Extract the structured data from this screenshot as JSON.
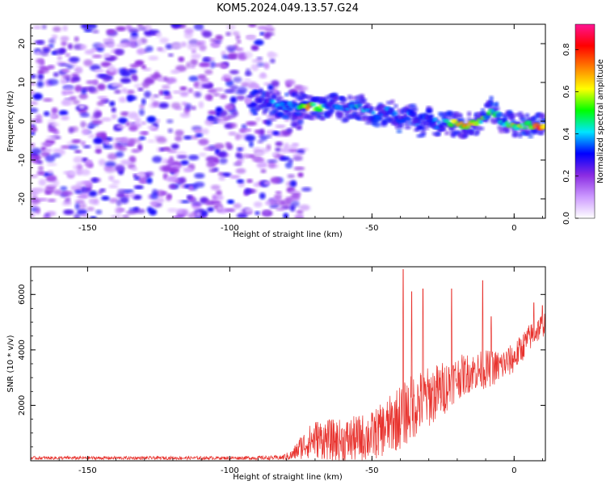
{
  "figure": {
    "title": "KOM5.2024.049.13.57.G24"
  },
  "chart_data": [
    {
      "type": "heatmap",
      "title": "KOM5.2024.049.13.57.G24",
      "xlabel": "Height of straight line (km)",
      "ylabel": "Frequency (Hz)",
      "xlim": [
        -170,
        11
      ],
      "ylim": [
        -25,
        25
      ],
      "x_ticks": [
        -150,
        -100,
        -50,
        0
      ],
      "y_ticks": [
        -20,
        -10,
        0,
        10,
        20
      ],
      "colorbar": {
        "label": "Normalized spectral amplitude",
        "range": [
          0.0,
          0.92
        ],
        "ticks": [
          0.0,
          0.2,
          0.4,
          0.6,
          0.8
        ],
        "colors": [
          "#ffffff",
          "#cc99ff",
          "#8a2be2",
          "#0000ff",
          "#00e5ff",
          "#00ff00",
          "#ffff00",
          "#ff7f00",
          "#ff0000",
          "#ff1493"
        ]
      },
      "noise_region_x": [
        -170,
        -77
      ],
      "noise_level": 0.1,
      "ridge": {
        "x": [
          -92,
          -87,
          -82,
          -77,
          -72,
          -68,
          -64,
          -60,
          -56,
          -52,
          -48,
          -44,
          -40,
          -36,
          -33,
          -30,
          -27,
          -24,
          -20,
          -16,
          -12,
          -8,
          -4,
          0,
          4,
          8,
          11
        ],
        "frequency": [
          5,
          5,
          4,
          4,
          4,
          3,
          4,
          3,
          4,
          3,
          1,
          3,
          0,
          2,
          -2,
          2,
          -1,
          0,
          -1,
          -1,
          0,
          3,
          0,
          -1,
          -1,
          -1,
          -1
        ],
        "amplitude": [
          0.25,
          0.3,
          0.4,
          0.35,
          0.7,
          0.5,
          0.3,
          0.35,
          0.4,
          0.35,
          0.3,
          0.35,
          0.3,
          0.35,
          0.3,
          0.35,
          0.35,
          0.4,
          0.6,
          0.6,
          0.5,
          0.45,
          0.4,
          0.6,
          0.6,
          0.7,
          0.85
        ]
      }
    },
    {
      "type": "line",
      "xlabel": "Height of straight line (km)",
      "ylabel": "SNR (10 * v/v)",
      "xlim": [
        -170,
        11
      ],
      "ylim": [
        0,
        7000
      ],
      "x_ticks": [
        -150,
        -100,
        -50,
        0
      ],
      "y_ticks": [
        2000,
        4000,
        6000
      ],
      "series": [
        {
          "color": "#e8322d",
          "envelope_x": [
            -170,
            -150,
            -100,
            -82,
            -78,
            -75,
            -70,
            -60,
            -50,
            -45,
            -40,
            -35,
            -30,
            -25,
            -20,
            -15,
            -10,
            -5,
            0,
            5,
            11
          ],
          "envelope_mean": [
            100,
            100,
            100,
            110,
            200,
            500,
            800,
            700,
            900,
            1200,
            1600,
            2000,
            2300,
            2600,
            3000,
            3200,
            3300,
            3400,
            3700,
            4400,
            5000
          ],
          "envelope_spread": [
            60,
            60,
            60,
            80,
            200,
            450,
            700,
            800,
            900,
            1000,
            1200,
            1200,
            1100,
            1000,
            800,
            700,
            700,
            600,
            550,
            500,
            450
          ],
          "peaks": [
            {
              "x": -39,
              "y": 6900
            },
            {
              "x": -36,
              "y": 6100
            },
            {
              "x": -32,
              "y": 6200
            },
            {
              "x": -22,
              "y": 6200
            },
            {
              "x": -11,
              "y": 6500
            },
            {
              "x": -8,
              "y": 5200
            },
            {
              "x": 7,
              "y": 5700
            },
            {
              "x": 10,
              "y": 5600
            }
          ]
        }
      ]
    }
  ]
}
